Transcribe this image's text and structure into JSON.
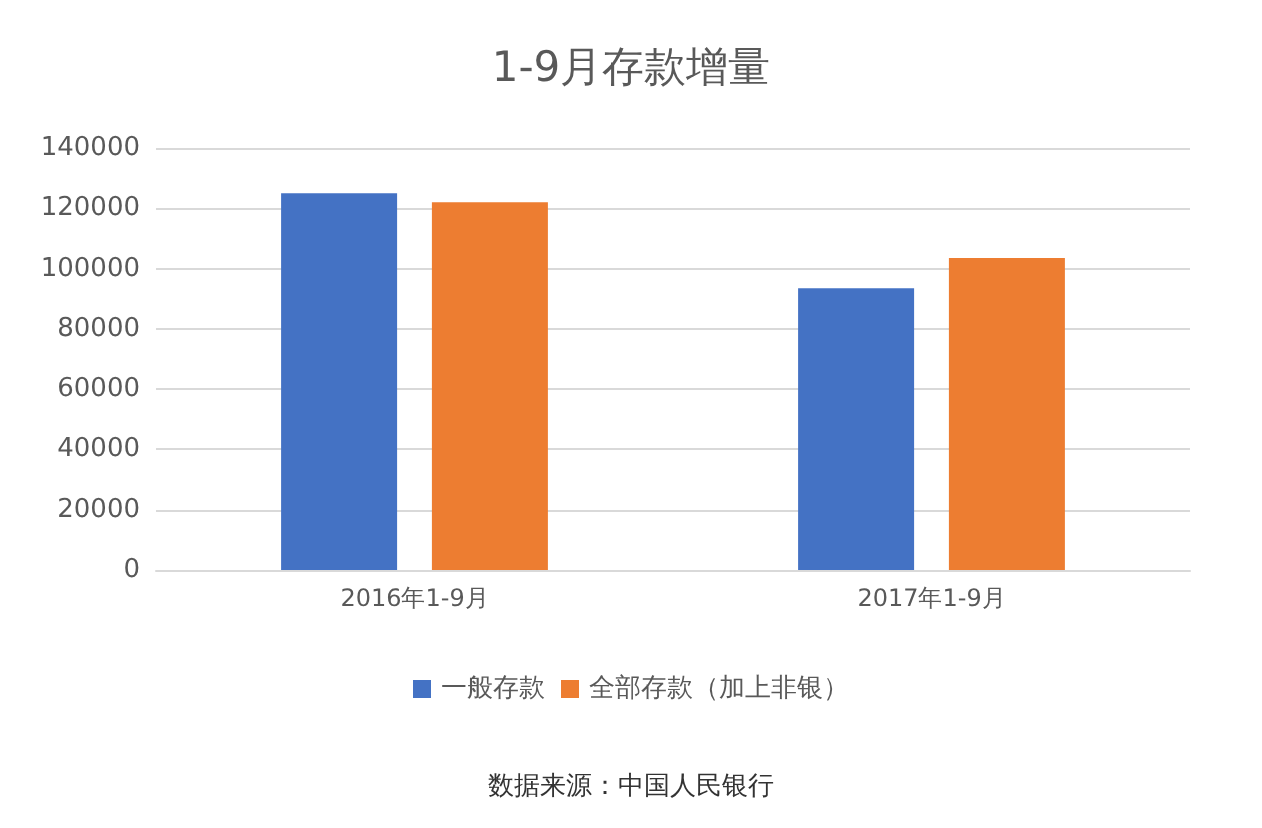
{
  "chart_data": {
    "type": "bar",
    "title": "1-9月存款增量",
    "categories": [
      "2016年1-9月",
      "2017年1-9月"
    ],
    "series": [
      {
        "name": "一般存款",
        "color": "#4472c4",
        "values": [
          125000,
          93500
        ]
      },
      {
        "name": "全部存款（加上非银）",
        "color": "#ed7d31",
        "values": [
          122000,
          103500
        ]
      }
    ],
    "ylim": [
      0,
      140000
    ],
    "yticks": [
      0,
      20000,
      40000,
      60000,
      80000,
      100000,
      120000,
      140000
    ],
    "grid": "y",
    "legend": "bottom",
    "annotations": [
      "数据来源：中国人民银行"
    ]
  }
}
